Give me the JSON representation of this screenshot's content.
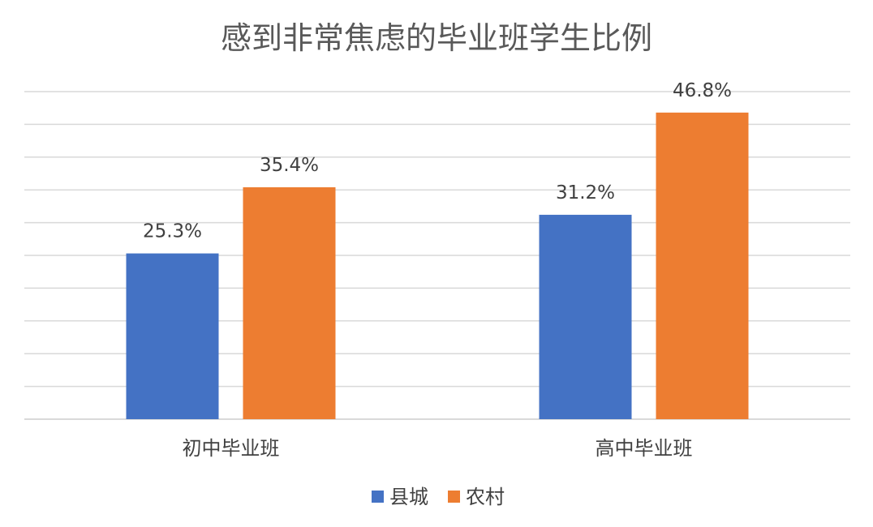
{
  "chart_data": {
    "type": "bar",
    "title": "感到非常焦虑的毕业班学生比例",
    "categories": [
      "初中毕业班",
      "高中毕业班"
    ],
    "series": [
      {
        "name": "县城",
        "values": [
          25.3,
          31.2
        ],
        "labels": [
          "25.3%",
          "31.2%"
        ],
        "color": "#4472C4"
      },
      {
        "name": "农村",
        "values": [
          35.4,
          46.8
        ],
        "labels": [
          "35.4%",
          "46.8%"
        ],
        "color": "#ED7D31"
      }
    ],
    "ylim": [
      0,
      50
    ],
    "grid": true,
    "legend_position": "bottom",
    "xlabel": "",
    "ylabel": ""
  }
}
